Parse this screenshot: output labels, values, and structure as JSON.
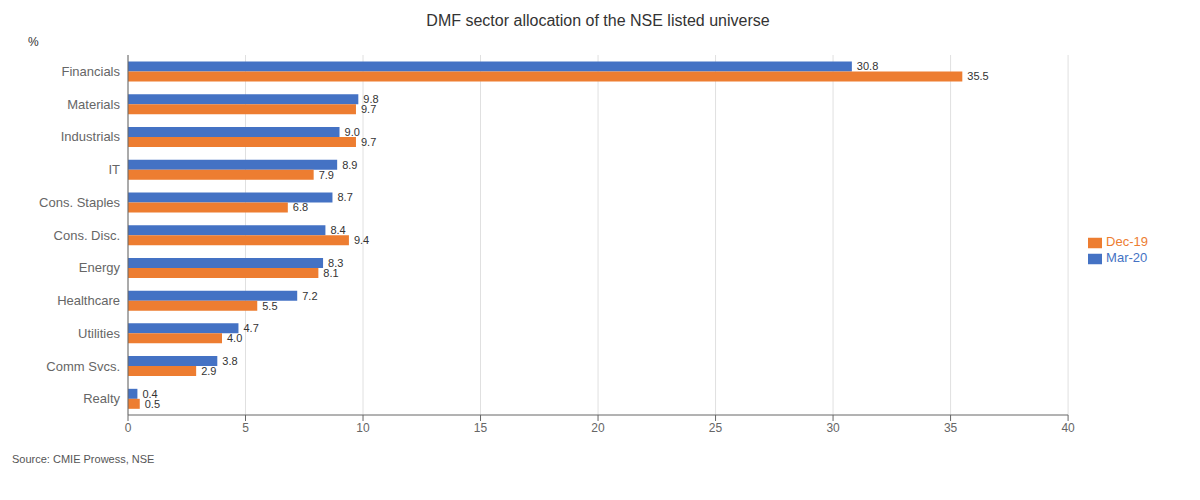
{
  "chart_data": {
    "type": "bar",
    "orientation": "horizontal",
    "title": "DMF sector allocation of the NSE listed universe",
    "ylabel": "%",
    "annotations": [
      "Source: CMIE Prowess, NSE"
    ],
    "categories": [
      "Financials",
      "Materials",
      "Industrials",
      "IT",
      "Cons. Staples",
      "Cons. Disc.",
      "Energy",
      "Healthcare",
      "Utilities",
      "Comm Svcs.",
      "Realty"
    ],
    "series": [
      {
        "name": "Mar-20",
        "color": "#4472C4",
        "values": [
          30.8,
          9.8,
          9.0,
          8.9,
          8.7,
          8.4,
          8.3,
          7.2,
          4.7,
          3.8,
          0.4
        ],
        "value_labels": [
          "30.8",
          "9.8",
          "9.0",
          "8.9",
          "8.7",
          "8.4",
          "8.3",
          "7.2",
          "4.7",
          "3.8",
          "0.4"
        ]
      },
      {
        "name": "Dec-19",
        "color": "#ED7D31",
        "values": [
          35.5,
          9.7,
          9.7,
          7.9,
          6.8,
          9.4,
          8.1,
          5.5,
          4.0,
          2.9,
          0.5
        ],
        "value_labels": [
          "35.5",
          "9.7",
          "9.7",
          "7.9",
          "6.8",
          "9.4",
          "8.1",
          "5.5",
          "4.0",
          "2.9",
          "0.5"
        ]
      }
    ],
    "xlim": [
      0,
      40
    ],
    "xticks": [
      0,
      5,
      10,
      15,
      20,
      25,
      30,
      35,
      40
    ],
    "grid": true,
    "legend": "right",
    "data_labels": true
  }
}
